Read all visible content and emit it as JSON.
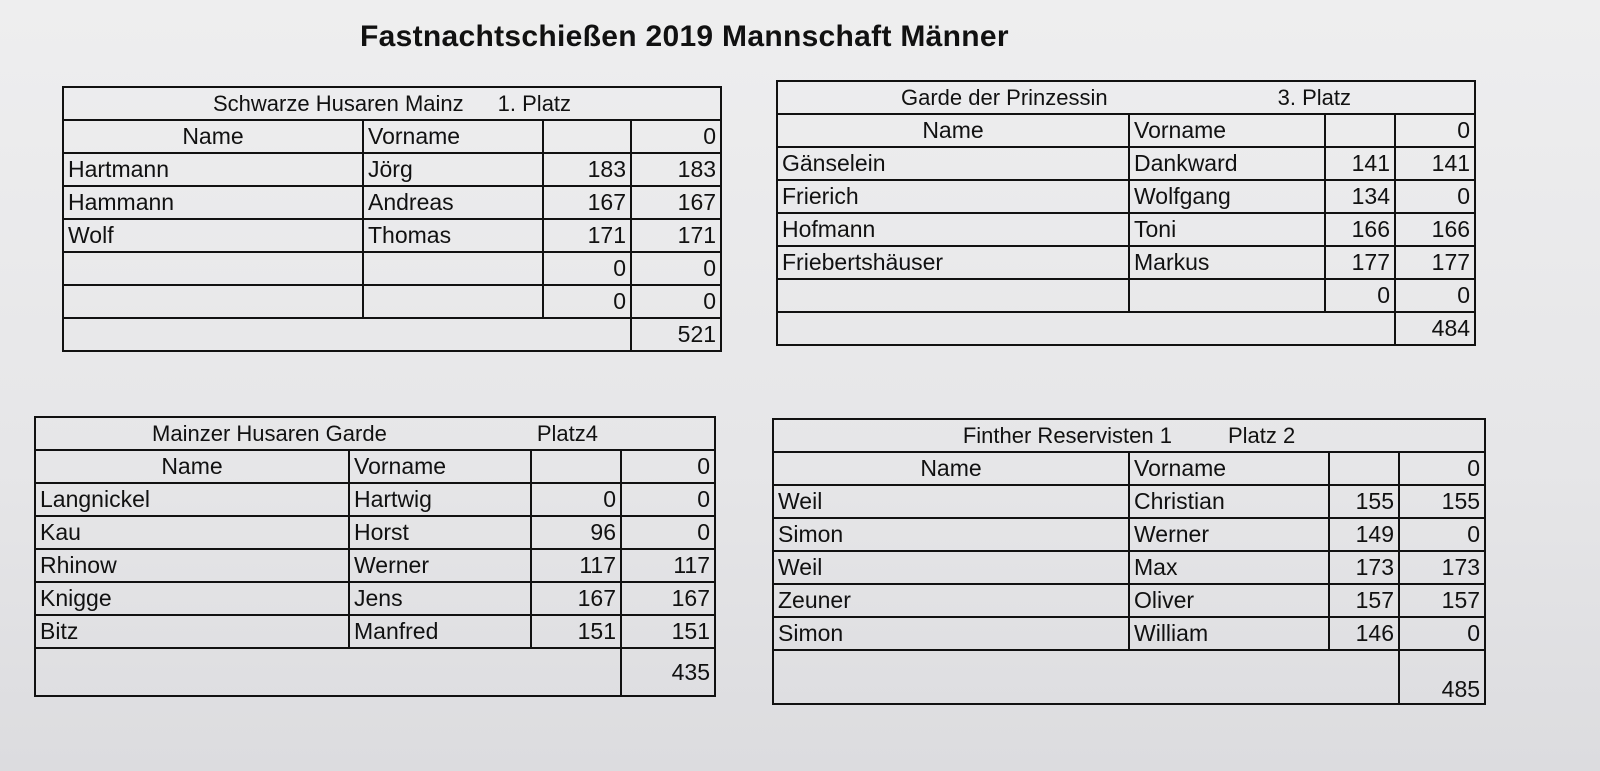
{
  "title": "Fastnachtschießen 2019 Mannschaft Männer",
  "columns": {
    "name": "Name",
    "vorname": "Vorname",
    "empty": "",
    "zero": "0"
  },
  "teams": [
    {
      "team": "Schwarze Husaren Mainz",
      "place": "1. Platz",
      "rows": [
        {
          "name": "Hartmann",
          "vorname": "Jörg",
          "score": "183",
          "counted": "183"
        },
        {
          "name": "Hammann",
          "vorname": "Andreas",
          "score": "167",
          "counted": "167"
        },
        {
          "name": "Wolf",
          "vorname": "Thomas",
          "score": "171",
          "counted": "171"
        },
        {
          "name": "",
          "vorname": "",
          "score": "0",
          "counted": "0"
        },
        {
          "name": "",
          "vorname": "",
          "score": "0",
          "counted": "0"
        }
      ],
      "total": "521"
    },
    {
      "team": "Garde der Prinzessin",
      "place": "3. Platz",
      "rows": [
        {
          "name": "Gänselein",
          "vorname": "Dankward",
          "score": "141",
          "counted": "141"
        },
        {
          "name": "Frierich",
          "vorname": "Wolfgang",
          "score": "134",
          "counted": "0"
        },
        {
          "name": "Hofmann",
          "vorname": "Toni",
          "score": "166",
          "counted": "166"
        },
        {
          "name": "Friebertshäuser",
          "vorname": "Markus",
          "score": "177",
          "counted": "177"
        },
        {
          "name": "",
          "vorname": "",
          "score": "0",
          "counted": "0"
        }
      ],
      "total": "484"
    },
    {
      "team": "Mainzer Husaren Garde",
      "place": "Platz4",
      "rows": [
        {
          "name": "Langnickel",
          "vorname": "Hartwig",
          "score": "0",
          "counted": "0"
        },
        {
          "name": "Kau",
          "vorname": "Horst",
          "score": "96",
          "counted": "0"
        },
        {
          "name": "Rhinow",
          "vorname": "Werner",
          "score": "117",
          "counted": "117"
        },
        {
          "name": "Knigge",
          "vorname": "Jens",
          "score": "167",
          "counted": "167"
        },
        {
          "name": "Bitz",
          "vorname": "Manfred",
          "score": "151",
          "counted": "151"
        }
      ],
      "total": "435"
    },
    {
      "team": "Finther Reservisten 1",
      "place": "Platz 2",
      "rows": [
        {
          "name": "Weil",
          "vorname": "Christian",
          "score": "155",
          "counted": "155"
        },
        {
          "name": "Simon",
          "vorname": "Werner",
          "score": "149",
          "counted": "0"
        },
        {
          "name": "Weil",
          "vorname": "Max",
          "score": "173",
          "counted": "173"
        },
        {
          "name": "Zeuner",
          "vorname": "Oliver",
          "score": "157",
          "counted": "157"
        },
        {
          "name": "Simon",
          "vorname": "William",
          "score": "146",
          "counted": "0"
        }
      ],
      "total": "485"
    }
  ]
}
